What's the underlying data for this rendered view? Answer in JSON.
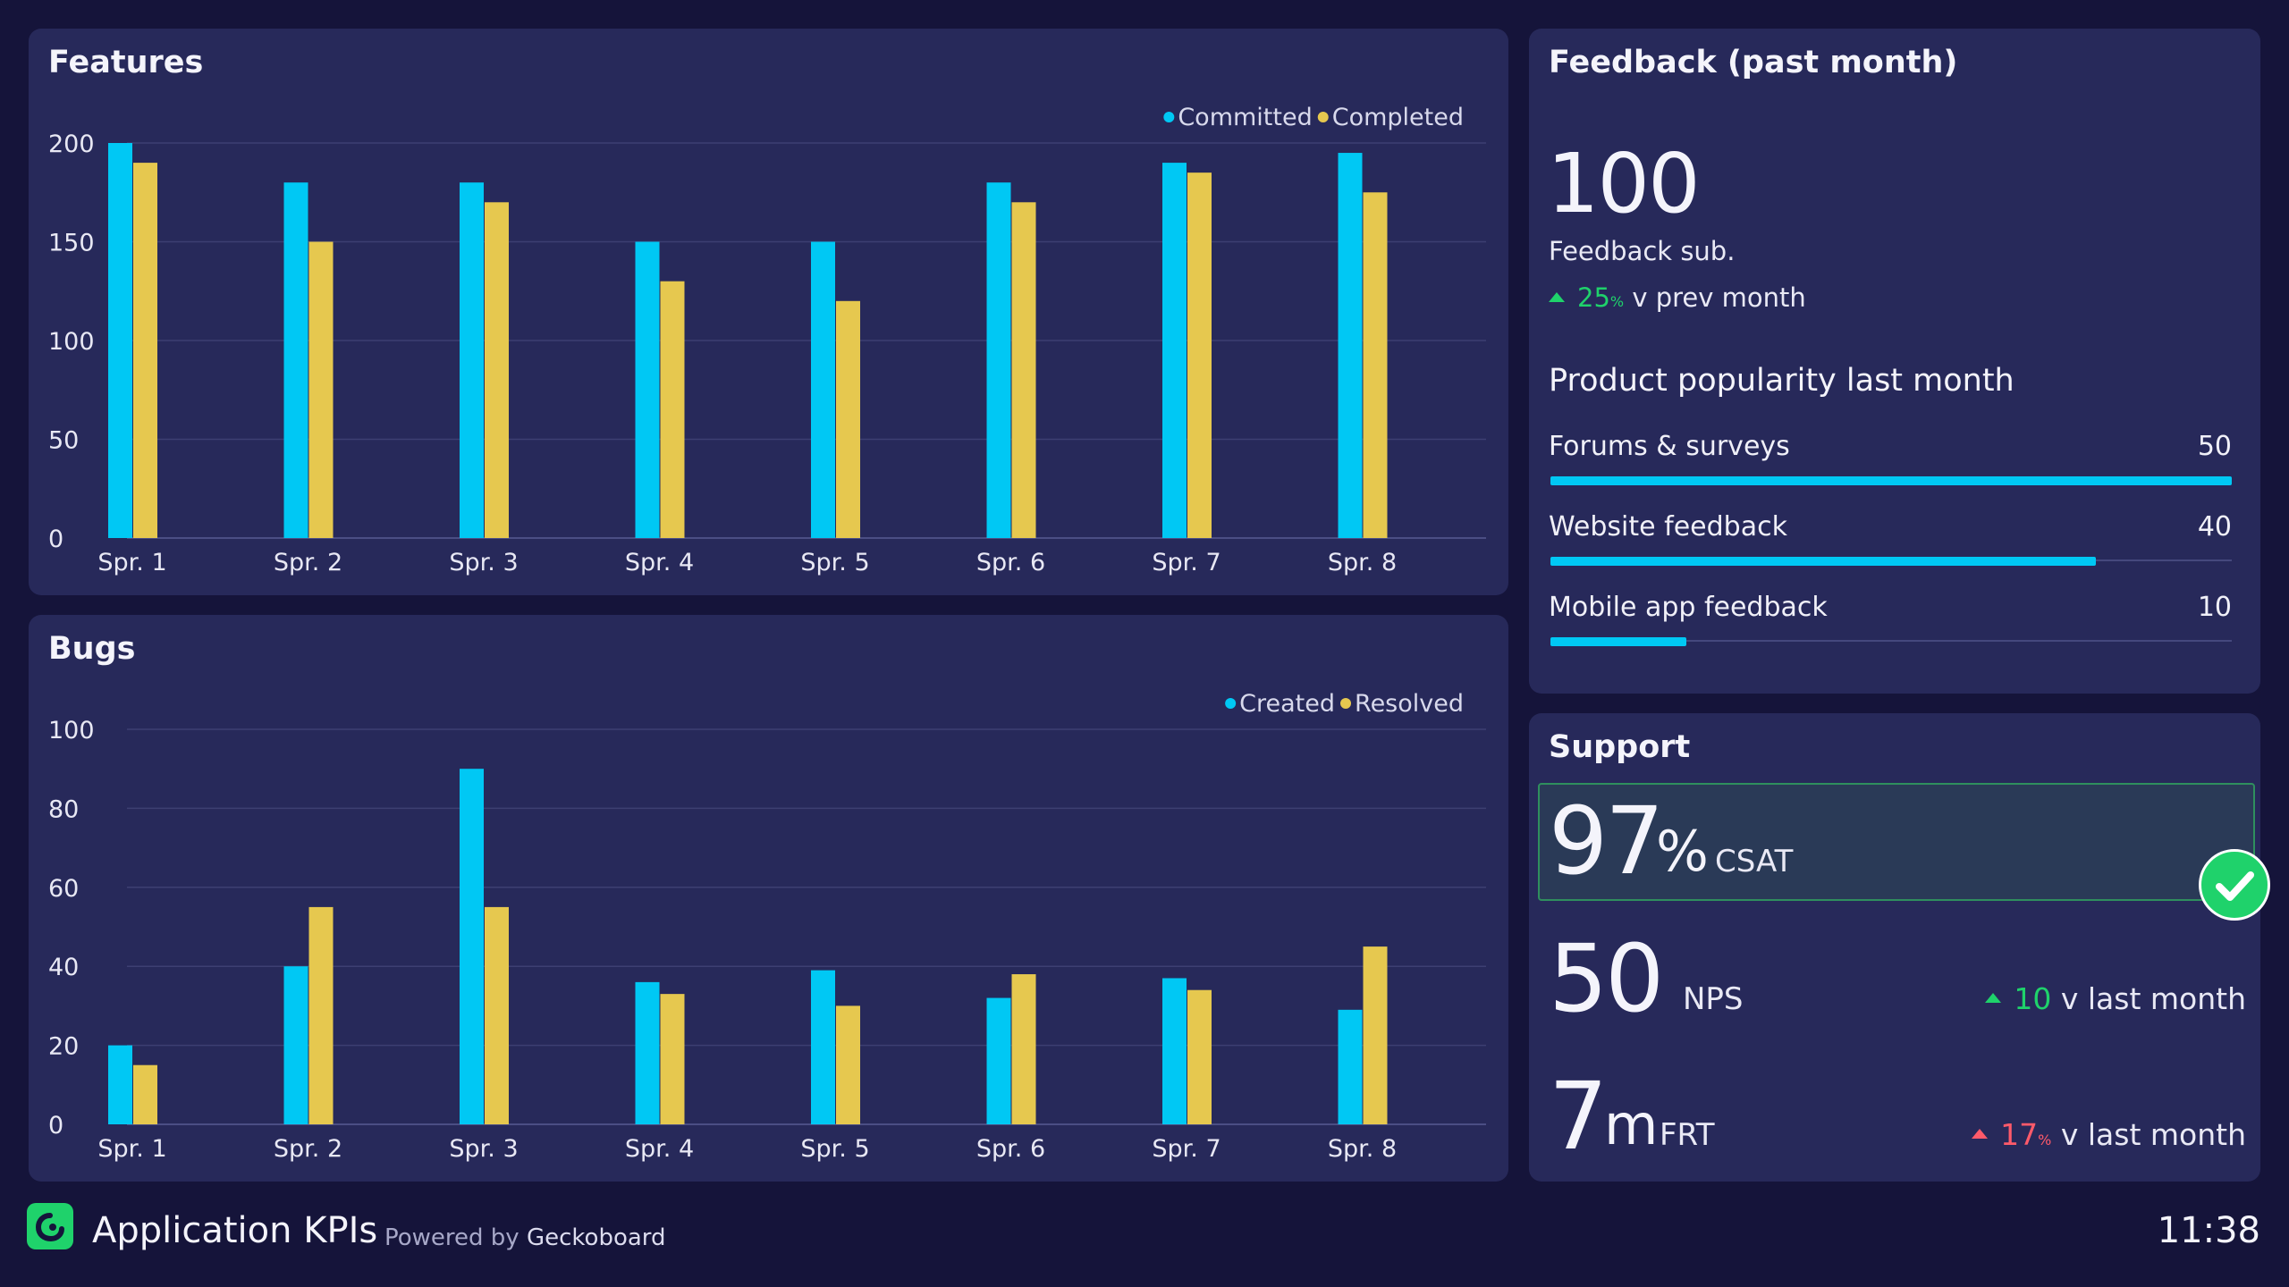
{
  "features": {
    "title": "Features",
    "chart_data": {
      "type": "bar",
      "title": "Features",
      "categories": [
        "Spr. 1",
        "Spr. 2",
        "Spr. 3",
        "Spr. 4",
        "Spr. 5",
        "Spr. 6",
        "Spr. 7",
        "Spr. 8"
      ],
      "series": [
        {
          "name": "Committed",
          "color": "#00c8f4",
          "values": [
            200,
            180,
            180,
            150,
            150,
            180,
            190,
            195
          ]
        },
        {
          "name": "Completed",
          "color": "#e6c84f",
          "values": [
            190,
            150,
            170,
            130,
            120,
            170,
            185,
            175
          ]
        }
      ],
      "ylim": [
        0,
        200
      ],
      "yticks": [
        0,
        50,
        100,
        150,
        200
      ],
      "grid": true,
      "legend": "top-right"
    }
  },
  "bugs": {
    "title": "Bugs",
    "chart_data": {
      "type": "bar",
      "title": "Bugs",
      "categories": [
        "Spr. 1",
        "Spr. 2",
        "Spr. 3",
        "Spr. 4",
        "Spr. 5",
        "Spr. 6",
        "Spr. 7",
        "Spr. 8"
      ],
      "series": [
        {
          "name": "Created",
          "color": "#00c8f4",
          "values": [
            20,
            40,
            90,
            36,
            39,
            32,
            37,
            29
          ]
        },
        {
          "name": "Resolved",
          "color": "#e6c84f",
          "values": [
            15,
            55,
            55,
            33,
            30,
            38,
            34,
            45
          ]
        }
      ],
      "ylim": [
        0,
        100
      ],
      "yticks": [
        0,
        20,
        40,
        60,
        80,
        100
      ],
      "grid": true,
      "legend": "top-right"
    }
  },
  "feedback": {
    "title": "Feedback (past month)",
    "count": "100",
    "count_label": "Feedback sub.",
    "trend_value": "25",
    "trend_unit": "%",
    "trend_text": "v prev month",
    "trend_color": "#1fd26b",
    "popularity_heading": "Product popularity last month",
    "popularity_max": 50,
    "items": [
      {
        "label": "Forums & surveys",
        "value": 50
      },
      {
        "label": "Website feedback",
        "value": 40
      },
      {
        "label": "Mobile app feedback",
        "value": 10
      }
    ]
  },
  "support": {
    "title": "Support",
    "csat": {
      "value": "97",
      "unit": "%",
      "label": "CSAT",
      "status": "check-icon"
    },
    "nps": {
      "value": "50",
      "label": "NPS",
      "trend_value": "10",
      "trend_text": "v last month",
      "trend_color": "#1fd26b"
    },
    "frt": {
      "value": "7",
      "unit": "m",
      "label": "FRT",
      "trend_value": "17",
      "trend_unit": "%",
      "trend_text": "v last month",
      "trend_color": "#ff5a6a"
    }
  },
  "footer": {
    "app_title": "Application KPIs",
    "powered_prefix": "Powered by",
    "powered_brand": "Geckoboard",
    "time": "11:38",
    "logo": "geckoboard-logo-icon"
  }
}
